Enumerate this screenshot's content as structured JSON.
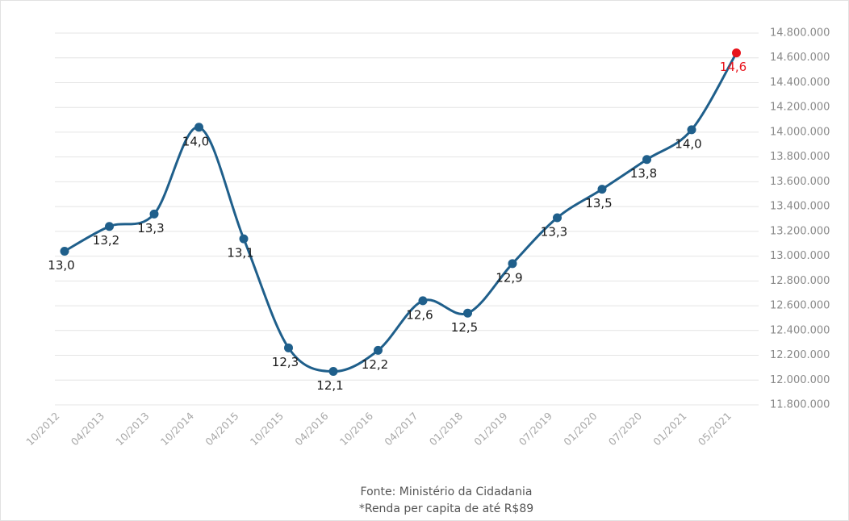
{
  "chart_data": {
    "type": "line",
    "categories": [
      "10/2012",
      "04/2013",
      "10/2013",
      "10/2014",
      "04/2015",
      "10/2015",
      "04/2016",
      "10/2016",
      "04/2017",
      "01/2018",
      "01/2019",
      "07/2019",
      "01/2020",
      "07/2020",
      "01/2021",
      "05/2021"
    ],
    "series": [
      {
        "color": "#1f5f8b",
        "values": [
          13040000,
          13240000,
          13340000,
          14040000,
          13140000,
          12260000,
          12070000,
          12240000,
          12640000,
          12540000,
          12940000,
          13310000,
          13540000,
          13780000,
          14020000,
          14640000
        ],
        "value_labels": [
          "13,0",
          "13,2",
          "13,3",
          "14,0",
          "13,1",
          "12,3",
          "12,1",
          "12,2",
          "12,6",
          "12,5",
          "12,9",
          "13,3",
          "13,5",
          "13,8",
          "14,0",
          "14,6"
        ],
        "point_colors": [
          "#1f5f8b",
          "#1f5f8b",
          "#1f5f8b",
          "#1f5f8b",
          "#1f5f8b",
          "#1f5f8b",
          "#1f5f8b",
          "#1f5f8b",
          "#1f5f8b",
          "#1f5f8b",
          "#1f5f8b",
          "#1f5f8b",
          "#1f5f8b",
          "#1f5f8b",
          "#1f5f8b",
          "#e8141c"
        ]
      }
    ],
    "ylim": [
      11800000,
      14800000
    ],
    "yticks": [
      {
        "value": 11800000,
        "label": "11.800.000"
      },
      {
        "value": 12000000,
        "label": "12.000.000"
      },
      {
        "value": 12200000,
        "label": "12.200.000"
      },
      {
        "value": 12400000,
        "label": "12.400.000"
      },
      {
        "value": 12600000,
        "label": "12.600.000"
      },
      {
        "value": 12800000,
        "label": "12.800.000"
      },
      {
        "value": 13000000,
        "label": "13.000.000"
      },
      {
        "value": 13200000,
        "label": "13.200.000"
      },
      {
        "value": 13400000,
        "label": "13.400.000"
      },
      {
        "value": 13600000,
        "label": "13.600.000"
      },
      {
        "value": 13800000,
        "label": "13.800.000"
      },
      {
        "value": 14000000,
        "label": "14.000.000"
      },
      {
        "value": 14200000,
        "label": "14.200.000"
      },
      {
        "value": 14400000,
        "label": "14.400.000"
      },
      {
        "value": 14600000,
        "label": "14.600.000"
      },
      {
        "value": 14800000,
        "label": "14.800.000"
      }
    ],
    "grid": true,
    "y_axis_side": "right",
    "footnotes": [
      "Fonte: Ministério da Cidadania",
      "*Renda per capita de até R$89"
    ]
  }
}
